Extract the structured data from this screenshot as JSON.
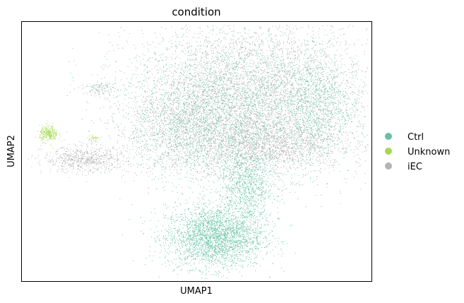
{
  "chart_data": {
    "type": "scatter",
    "title": "condition",
    "xlabel": "UMAP1",
    "ylabel": "UMAP2",
    "xlim": [
      0,
      100
    ],
    "ylim": [
      0,
      100
    ],
    "grid": false,
    "ticks": false,
    "legend_placement": "right",
    "series": [
      {
        "name": "Ctrl",
        "color": "#66c2a5",
        "clusters": [
          {
            "cx": 55,
            "cy": 17,
            "sx": 7,
            "sy": 6,
            "n": 2600
          },
          {
            "cx": 64,
            "cy": 37,
            "sx": 4,
            "sy": 9,
            "n": 1100
          },
          {
            "cx": 62,
            "cy": 68,
            "sx": 16,
            "sy": 14,
            "n": 2600
          },
          {
            "cx": 48,
            "cy": 58,
            "sx": 7,
            "sy": 10,
            "n": 700
          },
          {
            "cx": 84,
            "cy": 68,
            "sx": 5,
            "sy": 10,
            "n": 800
          },
          {
            "cx": 22,
            "cy": 75,
            "sx": 1.6,
            "sy": 1,
            "n": 40
          }
        ]
      },
      {
        "name": "Unknown",
        "color": "#a6d854",
        "clusters": [
          {
            "cx": 7.6,
            "cy": 57,
            "sx": 1.3,
            "sy": 1.5,
            "n": 260
          },
          {
            "cx": 20.5,
            "cy": 55,
            "sx": 1.0,
            "sy": 0.6,
            "n": 30
          }
        ]
      },
      {
        "name": "iEC",
        "color": "#b3b3b3",
        "clusters": [
          {
            "cx": 66,
            "cy": 72,
            "sx": 17,
            "sy": 15,
            "n": 4400
          },
          {
            "cx": 70,
            "cy": 53,
            "sx": 11,
            "sy": 5,
            "n": 1400
          },
          {
            "cx": 44,
            "cy": 60,
            "sx": 9,
            "sy": 9,
            "n": 900
          },
          {
            "cx": 18,
            "cy": 47,
            "sx": 6,
            "sy": 2.5,
            "n": 650
          },
          {
            "cx": 22,
            "cy": 74,
            "sx": 2.3,
            "sy": 1.3,
            "n": 60
          }
        ]
      }
    ]
  },
  "legend": [
    {
      "label": "Ctrl",
      "color": "#66c2a5"
    },
    {
      "label": "Unknown",
      "color": "#a6d854"
    },
    {
      "label": "iEC",
      "color": "#b3b3b3"
    }
  ]
}
